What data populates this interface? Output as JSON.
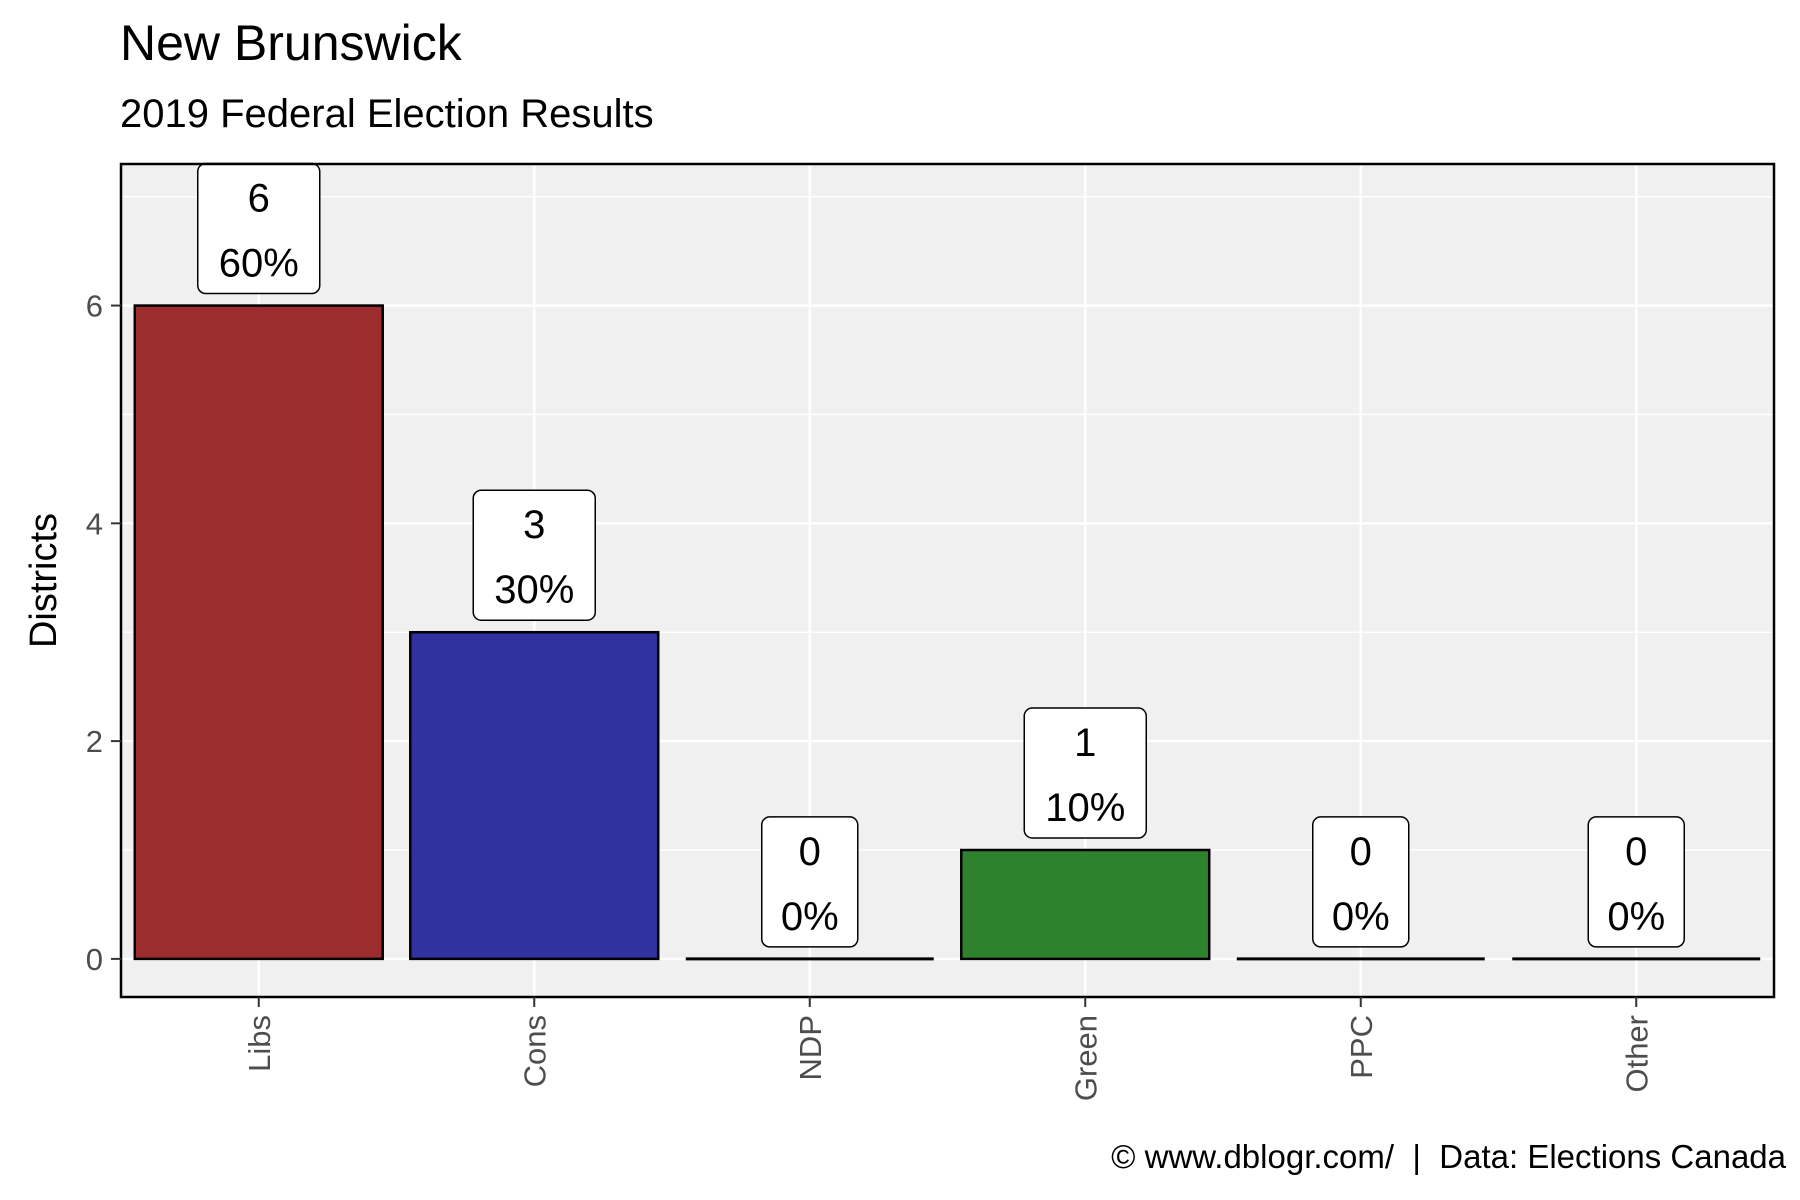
{
  "chart_data": {
    "type": "bar",
    "title": "New Brunswick",
    "subtitle": "2019 Federal Election Results",
    "ylabel": "Districts",
    "xlabel": "",
    "ylim": [
      -0.35,
      7.3
    ],
    "yticks": [
      0,
      2,
      4,
      6
    ],
    "grid": true,
    "categories": [
      "Libs",
      "Cons",
      "NDP",
      "Green",
      "PPC",
      "Other"
    ],
    "values": [
      6,
      3,
      0,
      1,
      0,
      0
    ],
    "labels": [
      {
        "count": "6",
        "pct": "60%"
      },
      {
        "count": "3",
        "pct": "30%"
      },
      {
        "count": "0",
        "pct": "0%"
      },
      {
        "count": "1",
        "pct": "10%"
      },
      {
        "count": "0",
        "pct": "0%"
      },
      {
        "count": "0",
        "pct": "0%"
      }
    ],
    "colors": [
      "#9b2d2e",
      "#3131a0",
      "#e0782a",
      "#2e822e",
      "#5a3c8c",
      "#888888"
    ],
    "panel_background": "#f0f0f0",
    "caption": "© www.dblogr.com/  |  Data: Elections Canada"
  }
}
